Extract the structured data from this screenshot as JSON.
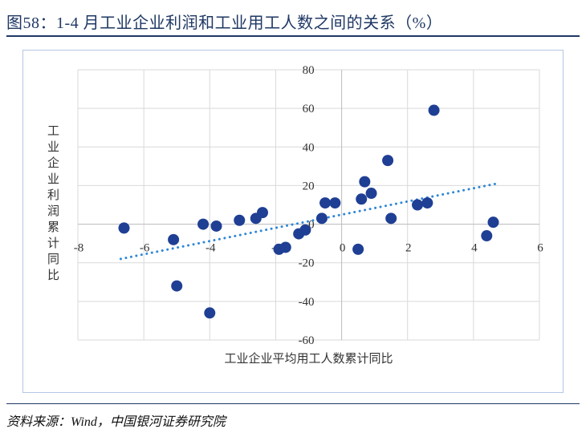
{
  "header": {
    "title": "图58：1-4 月工业企业利润和工业用工人数之间的关系（%）",
    "accent_color": "#1F3864"
  },
  "footer": {
    "source": "资料来源：Wind，中国银河证券研究院"
  },
  "chart_data": {
    "type": "scatter",
    "title": "",
    "xlabel": "工业企业平均用工人数累计同比",
    "ylabel": "工业企业利润累计同比",
    "xlim": [
      -8,
      6
    ],
    "ylim": [
      -60,
      80
    ],
    "xticks": [
      -8,
      -6,
      -4,
      -2,
      0,
      2,
      4,
      6
    ],
    "yticks": [
      80,
      60,
      40,
      20,
      0,
      -20,
      -40,
      -60
    ],
    "grid": true,
    "legend": "none",
    "points": [
      {
        "x": -6.6,
        "y": -2
      },
      {
        "x": -5.1,
        "y": -8
      },
      {
        "x": -5.0,
        "y": -32
      },
      {
        "x": -4.2,
        "y": 0
      },
      {
        "x": -4.0,
        "y": -46
      },
      {
        "x": -3.8,
        "y": -1
      },
      {
        "x": -3.1,
        "y": 2
      },
      {
        "x": -2.6,
        "y": 3
      },
      {
        "x": -2.4,
        "y": 6
      },
      {
        "x": -1.9,
        "y": -13
      },
      {
        "x": -1.7,
        "y": -12
      },
      {
        "x": -1.3,
        "y": -5
      },
      {
        "x": -1.1,
        "y": -3
      },
      {
        "x": -0.6,
        "y": 3
      },
      {
        "x": -0.5,
        "y": 11
      },
      {
        "x": -0.2,
        "y": 11
      },
      {
        "x": 0.5,
        "y": -13
      },
      {
        "x": 0.6,
        "y": 13
      },
      {
        "x": 0.7,
        "y": 22
      },
      {
        "x": 0.9,
        "y": 16
      },
      {
        "x": 1.4,
        "y": 33
      },
      {
        "x": 1.5,
        "y": 3
      },
      {
        "x": 2.3,
        "y": 10
      },
      {
        "x": 2.6,
        "y": 11
      },
      {
        "x": 2.8,
        "y": 59
      },
      {
        "x": 4.4,
        "y": -6
      },
      {
        "x": 4.6,
        "y": 1
      }
    ],
    "trendline": {
      "x1": -6.7,
      "y1": -18,
      "x2": 4.7,
      "y2": 21,
      "style": "dotted"
    },
    "colors": {
      "point": "#1F3F94",
      "trend": "#2E86D6",
      "grid": "#D9D9D9",
      "axis": "#BFBFBF",
      "tick_text": "#333333"
    }
  }
}
